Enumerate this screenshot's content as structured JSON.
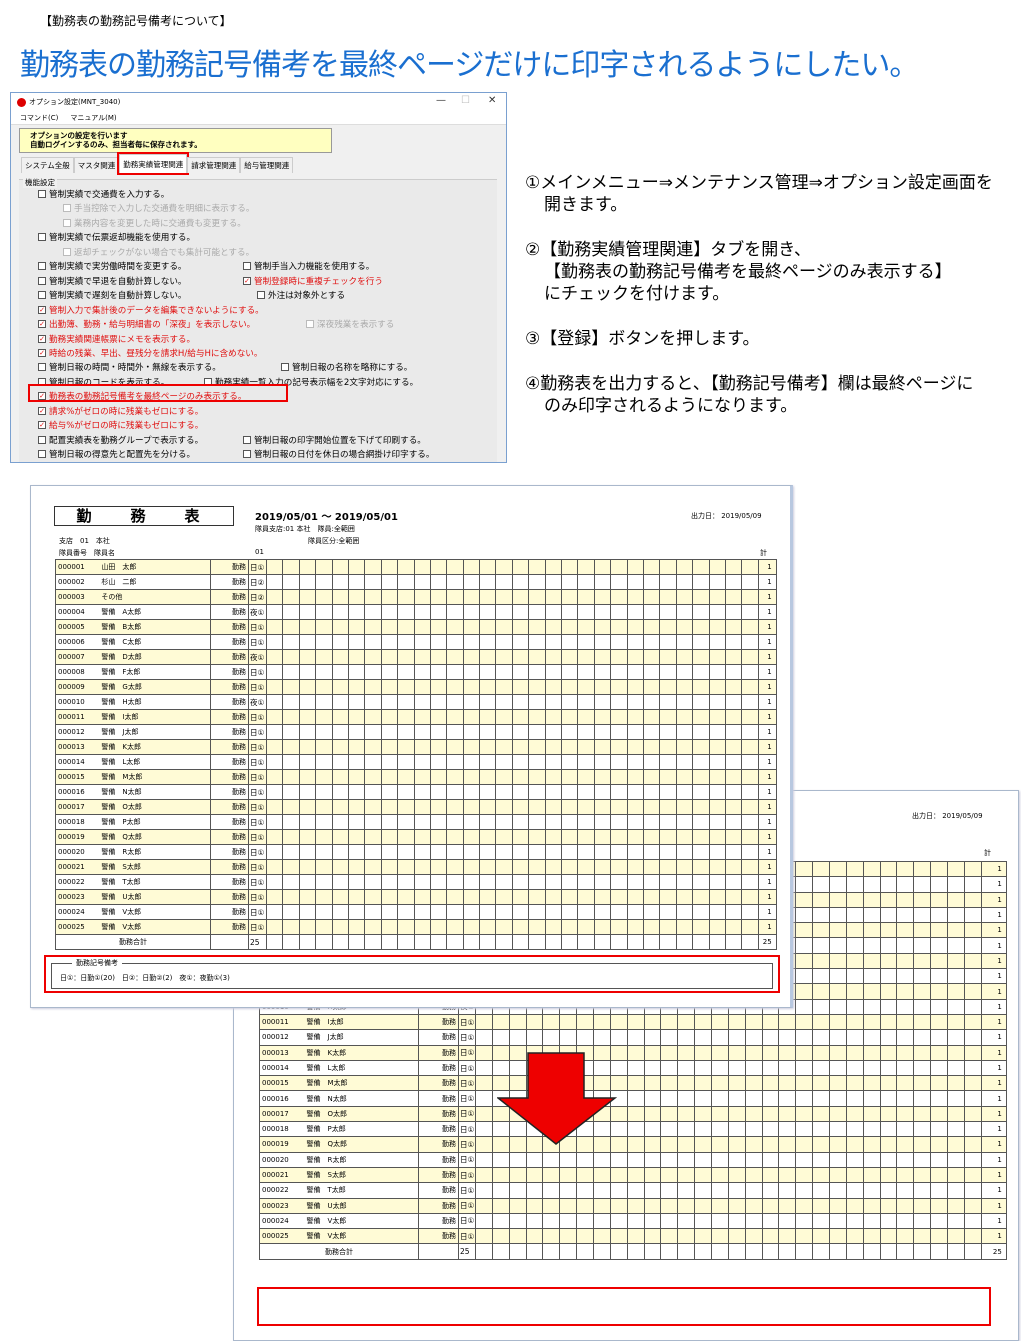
{
  "header": {
    "small": "【勤務表の勤務記号備考について】",
    "title": "勤務表の勤務記号備考を最終ページだけに印字されるようにしたい。"
  },
  "dialog": {
    "title": "オプション設定(MNT_3040)",
    "window_buttons": {
      "minimize": "—",
      "maximize": "☐",
      "close": "✕"
    },
    "menu": [
      "コマンド(C)",
      "マニュアル(M)"
    ],
    "note": [
      "オプションの設定を行います",
      "自動ログインするのみ、担当者毎に保存されます。"
    ],
    "tabs": [
      {
        "label": "システム全般"
      },
      {
        "label": "マスタ関連"
      },
      {
        "label": "勤務実績管理関連",
        "selected": true
      },
      {
        "label": "請求管理関連"
      },
      {
        "label": "給与管理関連"
      }
    ],
    "group_label": "機能設定",
    "options": [
      {
        "text": "管制実績で交通費を入力する。",
        "checked": false,
        "style": "normal",
        "row": 0,
        "col": "a"
      },
      {
        "text": "手当控除で入力した交通費を明細に表示する。",
        "checked": false,
        "style": "gray",
        "row": 1,
        "col": "i"
      },
      {
        "text": "業務内容を変更した時に交通費も変更する。",
        "checked": false,
        "style": "gray",
        "row": 2,
        "col": "i"
      },
      {
        "text": "管制実績で伝票返却機能を使用する。",
        "checked": false,
        "style": "normal",
        "row": 3,
        "col": "a"
      },
      {
        "text": "返却チェックがない場合でも集計可能とする。",
        "checked": false,
        "style": "gray",
        "row": 4,
        "col": "i"
      },
      {
        "text": "管制実績で実労働時間を変更する。",
        "checked": false,
        "style": "normal",
        "row": 5,
        "col": "a"
      },
      {
        "text": "管制手当入力機能を使用する。",
        "checked": false,
        "style": "normal",
        "row": 5,
        "col": "b"
      },
      {
        "text": "管制実績で早退を自動計算しない。",
        "checked": false,
        "style": "normal",
        "row": 6,
        "col": "a"
      },
      {
        "text": "管制登録時に重複チェックを行う",
        "checked": true,
        "style": "red",
        "row": 6,
        "col": "b"
      },
      {
        "text": "管制実績で遅刻を自動計算しない。",
        "checked": false,
        "style": "normal",
        "row": 7,
        "col": "a"
      },
      {
        "text": "外注は対象外とする",
        "checked": false,
        "style": "normal",
        "row": 7,
        "col": "c"
      },
      {
        "text": "管制入力で集計後のデータを編集できないようにする。",
        "checked": true,
        "style": "red",
        "row": 8,
        "col": "a"
      },
      {
        "text": "出勤簿、勤務・給与明細書の「深夜」を表示しない。",
        "checked": true,
        "style": "red",
        "row": 9,
        "col": "a"
      },
      {
        "text": "深夜残業を表示する",
        "checked": false,
        "style": "gray",
        "row": 9,
        "col": "d"
      },
      {
        "text": "勤務実績関連帳票にメモを表示する。",
        "checked": true,
        "style": "red",
        "row": 10,
        "col": "a"
      },
      {
        "text": "時給の残業、早出、昼残分を請求H/給与Hに含めない。",
        "checked": true,
        "style": "red",
        "row": 11,
        "col": "a"
      },
      {
        "text": "管制日報の時間・時間外・無線を表示する。",
        "checked": false,
        "style": "normal",
        "row": 12,
        "col": "a"
      },
      {
        "text": "管制日報の名称を略称にする。",
        "checked": false,
        "style": "normal",
        "row": 12,
        "col": "e"
      },
      {
        "text": "管制日報のコードを表示する。",
        "checked": false,
        "style": "normal",
        "row": 13,
        "col": "a"
      },
      {
        "text": "勤務実績一覧入力の記号表示幅を2文字対応にする。",
        "checked": false,
        "style": "normal",
        "row": 13,
        "col": "f"
      },
      {
        "text": "勤務表の勤務記号備考を最終ページのみ表示する。",
        "checked": true,
        "style": "red",
        "row": 14,
        "col": "a"
      },
      {
        "text": "請求%がゼロの時に残業もゼロにする。",
        "checked": true,
        "style": "red",
        "row": 15,
        "col": "a"
      },
      {
        "text": "給与%がゼロの時に残業もゼロにする。",
        "checked": true,
        "style": "red",
        "row": 16,
        "col": "a"
      },
      {
        "text": "配置実績表を勤務グループで表示する。",
        "checked": false,
        "style": "normal",
        "row": 17,
        "col": "a"
      },
      {
        "text": "管制日報の印字開始位置を下げて印刷する。",
        "checked": false,
        "style": "normal",
        "row": 17,
        "col": "b"
      },
      {
        "text": "管制日報の得意先と配置先を分ける。",
        "checked": false,
        "style": "normal",
        "row": 18,
        "col": "a"
      },
      {
        "text": "管制日報の日付を休日の場合網掛け印字する。",
        "checked": false,
        "style": "normal",
        "row": 18,
        "col": "b"
      }
    ]
  },
  "instructions": [
    {
      "lines": [
        "①メインメニュー⇒メンテナンス管理⇒オプション設定画面を",
        "開きます。"
      ]
    },
    {
      "lines": [
        "②【勤務実績管理関連】タブを開き、",
        "【勤務表の勤務記号備考を最終ページのみ表示する】",
        "にチェックを付けます。"
      ]
    },
    {
      "lines": [
        "③【登録】ボタンを押します。"
      ]
    },
    {
      "lines": [
        "④勤務表を出力すると､【勤務記号備考】欄は最終ページに",
        "のみ印字されるようになります。"
      ]
    }
  ],
  "report": {
    "title": "勤　務　表",
    "period": "2019/05/01 ～ 2019/05/01",
    "filter1": "隊員支店:01 本社　隊員:全範囲",
    "filter2": "隊員区分:全範囲",
    "branch": "支店　01　本社",
    "col_headers": "隊員番号　隊員名",
    "day_header": "01",
    "total_header": "計",
    "output_date": "出力日： 2019/05/09",
    "total_label": "勤務合計",
    "total_day": "25",
    "total_sum": "25",
    "remarks_label": "勤務記号備考",
    "remarks_text": "日①：日勤①(20)　日②：日勤②(2)　夜①：夜勤①(3)",
    "rows": [
      {
        "id": "000001",
        "name": "山田　太郎",
        "kind": "勤務",
        "symbol": "日①",
        "count": "1"
      },
      {
        "id": "000002",
        "name": "杉山　二郎",
        "kind": "勤務",
        "symbol": "日②",
        "count": "1"
      },
      {
        "id": "000003",
        "name": "その他",
        "kind": "勤務",
        "symbol": "日②",
        "count": "1"
      },
      {
        "id": "000004",
        "name": "警備　A太郎",
        "kind": "勤務",
        "symbol": "夜①",
        "count": "1"
      },
      {
        "id": "000005",
        "name": "警備　B太郎",
        "kind": "勤務",
        "symbol": "日①",
        "count": "1"
      },
      {
        "id": "000006",
        "name": "警備　C太郎",
        "kind": "勤務",
        "symbol": "日①",
        "count": "1"
      },
      {
        "id": "000007",
        "name": "警備　D太郎",
        "kind": "勤務",
        "symbol": "夜①",
        "count": "1"
      },
      {
        "id": "000008",
        "name": "警備　F太郎",
        "kind": "勤務",
        "symbol": "日①",
        "count": "1"
      },
      {
        "id": "000009",
        "name": "警備　G太郎",
        "kind": "勤務",
        "symbol": "日①",
        "count": "1"
      },
      {
        "id": "000010",
        "name": "警備　H太郎",
        "kind": "勤務",
        "symbol": "夜①",
        "count": "1"
      },
      {
        "id": "000011",
        "name": "警備　I太郎",
        "kind": "勤務",
        "symbol": "日①",
        "count": "1"
      },
      {
        "id": "000012",
        "name": "警備　J太郎",
        "kind": "勤務",
        "symbol": "日①",
        "count": "1"
      },
      {
        "id": "000013",
        "name": "警備　K太郎",
        "kind": "勤務",
        "symbol": "日①",
        "count": "1"
      },
      {
        "id": "000014",
        "name": "警備　L太郎",
        "kind": "勤務",
        "symbol": "日①",
        "count": "1"
      },
      {
        "id": "000015",
        "name": "警備　M太郎",
        "kind": "勤務",
        "symbol": "日①",
        "count": "1"
      },
      {
        "id": "000016",
        "name": "警備　N太郎",
        "kind": "勤務",
        "symbol": "日①",
        "count": "1"
      },
      {
        "id": "000017",
        "name": "警備　O太郎",
        "kind": "勤務",
        "symbol": "日①",
        "count": "1"
      },
      {
        "id": "000018",
        "name": "警備　P太郎",
        "kind": "勤務",
        "symbol": "日①",
        "count": "1"
      },
      {
        "id": "000019",
        "name": "警備　Q太郎",
        "kind": "勤務",
        "symbol": "日①",
        "count": "1"
      },
      {
        "id": "000020",
        "name": "警備　R太郎",
        "kind": "勤務",
        "symbol": "日①",
        "count": "1"
      },
      {
        "id": "000021",
        "name": "警備　S太郎",
        "kind": "勤務",
        "symbol": "日①",
        "count": "1"
      },
      {
        "id": "000022",
        "name": "警備　T太郎",
        "kind": "勤務",
        "symbol": "日①",
        "count": "1"
      },
      {
        "id": "000023",
        "name": "警備　U太郎",
        "kind": "勤務",
        "symbol": "日①",
        "count": "1"
      },
      {
        "id": "000024",
        "name": "警備　V太郎",
        "kind": "勤務",
        "symbol": "日①",
        "count": "1"
      },
      {
        "id": "000025",
        "name": "警備　V太郎",
        "kind": "勤務",
        "symbol": "日①",
        "count": "1"
      }
    ]
  },
  "colors": {
    "accent_title": "#1a6fd0",
    "highlight": "#ee0000",
    "row_fill": "#fffbd6",
    "note_fill": "#ffffc0"
  },
  "icons": {
    "arrow": "down-arrow-icon",
    "app": "app-icon"
  }
}
